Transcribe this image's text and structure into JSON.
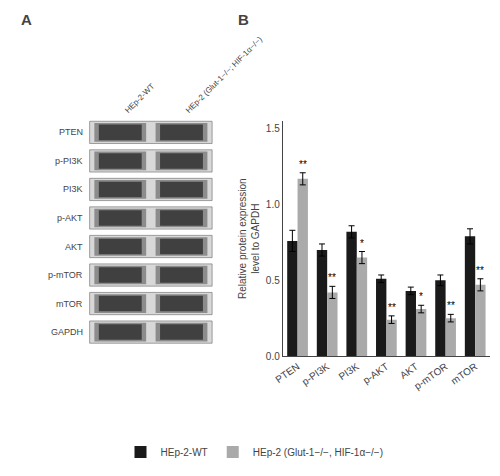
{
  "chart_data": {
    "type": "bar",
    "categories": [
      "PTEN",
      "p-PI3K",
      "PI3K",
      "p-AKT",
      "AKT",
      "p-mTOR",
      "mTOR"
    ],
    "series": [
      {
        "name": "HEp-2-WT",
        "color": "#1a1a1a",
        "values": [
          0.76,
          0.7,
          0.82,
          0.51,
          0.43,
          0.5,
          0.79
        ],
        "errors": [
          0.07,
          0.04,
          0.04,
          0.025,
          0.025,
          0.035,
          0.05
        ]
      },
      {
        "name": "HEp-2 (Glut-1−/−, HIF-1α−/−)",
        "color": "#aaaaaa",
        "values": [
          1.17,
          0.42,
          0.65,
          0.24,
          0.31,
          0.25,
          0.47
        ],
        "errors": [
          0.04,
          0.04,
          0.04,
          0.025,
          0.025,
          0.025,
          0.04
        ],
        "significance": [
          "**",
          "**",
          "*",
          "**",
          "*",
          "**",
          "**"
        ]
      }
    ],
    "ylabel": "Relative protein expression\nlevel to GAPDH",
    "ylim": [
      0,
      1.55
    ],
    "yticks": [
      {
        "value": 0,
        "label": "0.0"
      },
      0.5,
      {
        "value": 1,
        "label": "1.0"
      },
      1.5
    ],
    "grid": false,
    "legend": "bottom",
    "panel_labels": [
      "A",
      "B"
    ],
    "blot_rows": [
      "PTEN",
      "p-PI3K",
      "PI3K",
      "p-AKT",
      "AKT",
      "p-mTOR",
      "mTOR",
      "GAPDH"
    ],
    "blot_columns": [
      "HEp-2-WT",
      "HEp-2 (Glut-1−/−; HIF-1α−/−)"
    ]
  }
}
